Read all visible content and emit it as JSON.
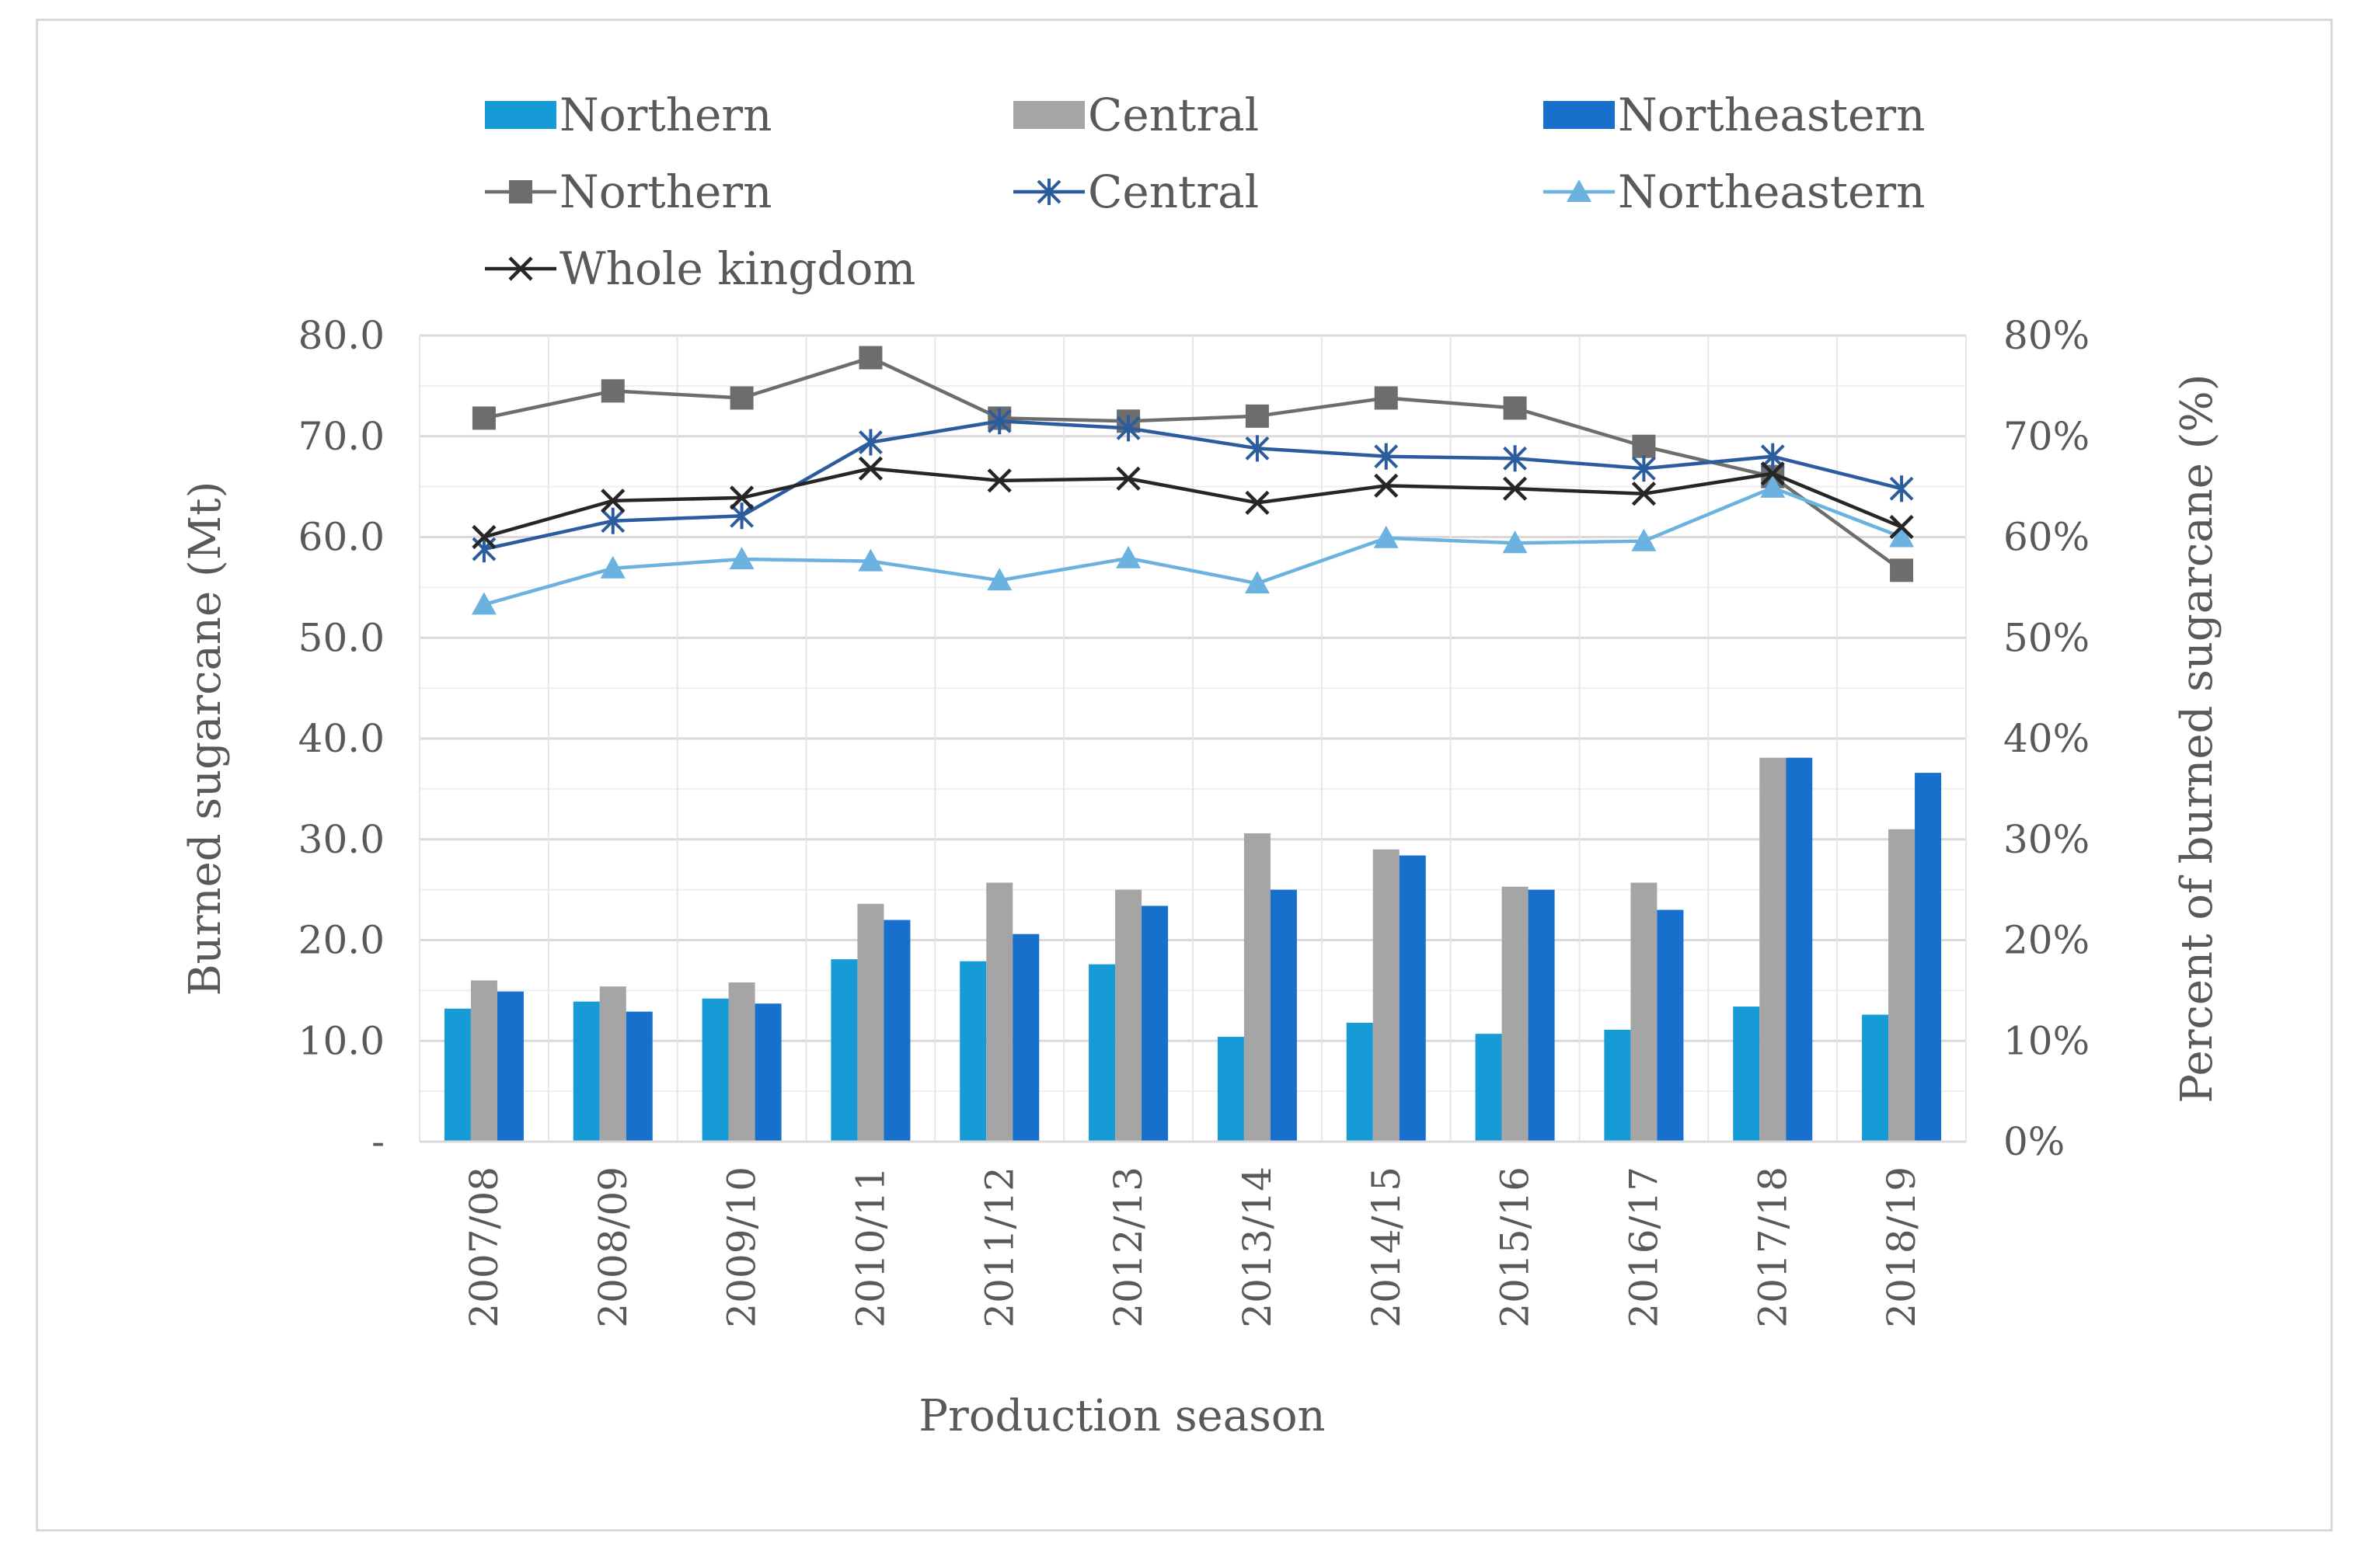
{
  "chart_data": {
    "type": "bar+line",
    "categories": [
      "2007/08",
      "2008/09",
      "2009/10",
      "2010/11",
      "2011/12",
      "2012/13",
      "2013/14",
      "2014/15",
      "2015/16",
      "2016/17",
      "2017/18",
      "2018/19"
    ],
    "bar_series": [
      {
        "name": "Northern",
        "color": "#169bd7",
        "values": [
          13.2,
          13.9,
          14.2,
          18.1,
          17.9,
          17.6,
          10.4,
          11.8,
          10.7,
          11.1,
          13.4,
          12.6
        ]
      },
      {
        "name": "Central",
        "color": "#a5a5a5",
        "values": [
          16.0,
          15.4,
          15.8,
          23.6,
          25.7,
          25.0,
          30.6,
          29.0,
          25.3,
          25.7,
          38.1,
          31.0
        ]
      },
      {
        "name": "Northeastern",
        "color": "#1670cc",
        "values": [
          14.9,
          12.9,
          13.7,
          22.0,
          20.6,
          23.4,
          25.0,
          28.4,
          25.0,
          23.0,
          38.1,
          36.6
        ]
      }
    ],
    "line_series": [
      {
        "name": "Northern",
        "color": "#6d6d6d",
        "marker": "square",
        "values": [
          71.8,
          74.5,
          73.8,
          77.8,
          71.8,
          71.5,
          72.0,
          73.8,
          72.8,
          69.0,
          66.0,
          56.7
        ]
      },
      {
        "name": "Central",
        "color": "#2b5c9e",
        "marker": "asterisk",
        "values": [
          58.8,
          61.6,
          62.1,
          69.4,
          71.5,
          70.8,
          68.8,
          68.0,
          67.8,
          66.8,
          68.0,
          64.8
        ]
      },
      {
        "name": "Northeastern",
        "color": "#6bb2e0",
        "marker": "triangle",
        "values": [
          53.3,
          56.9,
          57.8,
          57.6,
          55.7,
          57.9,
          55.4,
          59.9,
          59.4,
          59.6,
          64.9,
          60.0
        ]
      },
      {
        "name": "Whole kingdom",
        "color": "#262626",
        "marker": "x",
        "values": [
          60.0,
          63.6,
          63.9,
          66.8,
          65.6,
          65.8,
          63.4,
          65.1,
          64.8,
          64.3,
          66.3,
          61.0
        ]
      }
    ],
    "y_left": {
      "label": "Burned sugarcane (Mt)",
      "ylim": [
        0,
        80
      ],
      "ticks": [
        "-",
        "10.0",
        "20.0",
        "30.0",
        "40.0",
        "50.0",
        "60.0",
        "70.0",
        "80.0"
      ]
    },
    "y_right": {
      "label": "Percent of burned sugarcane (%)",
      "ylim": [
        0,
        80
      ],
      "ticks": [
        "0%",
        "10%",
        "20%",
        "30%",
        "40%",
        "50%",
        "60%",
        "70%",
        "80%"
      ]
    },
    "xlabel": "Production season",
    "legend": {
      "placement": "top",
      "rows": [
        [
          {
            "label": "Northern",
            "kind": "bar",
            "series": "Northern"
          },
          {
            "label": "Central",
            "kind": "bar",
            "series": "Central"
          },
          {
            "label": "Northeastern",
            "kind": "bar",
            "series": "Northeastern"
          }
        ],
        [
          {
            "label": "Northern",
            "kind": "line",
            "series": "Northern"
          },
          {
            "label": "Central",
            "kind": "line",
            "series": "Central"
          },
          {
            "label": "Northeastern",
            "kind": "line",
            "series": "Northeastern"
          }
        ],
        [
          {
            "label": "Whole kingdom",
            "kind": "line",
            "series": "Whole kingdom"
          }
        ]
      ]
    },
    "grid": true
  }
}
